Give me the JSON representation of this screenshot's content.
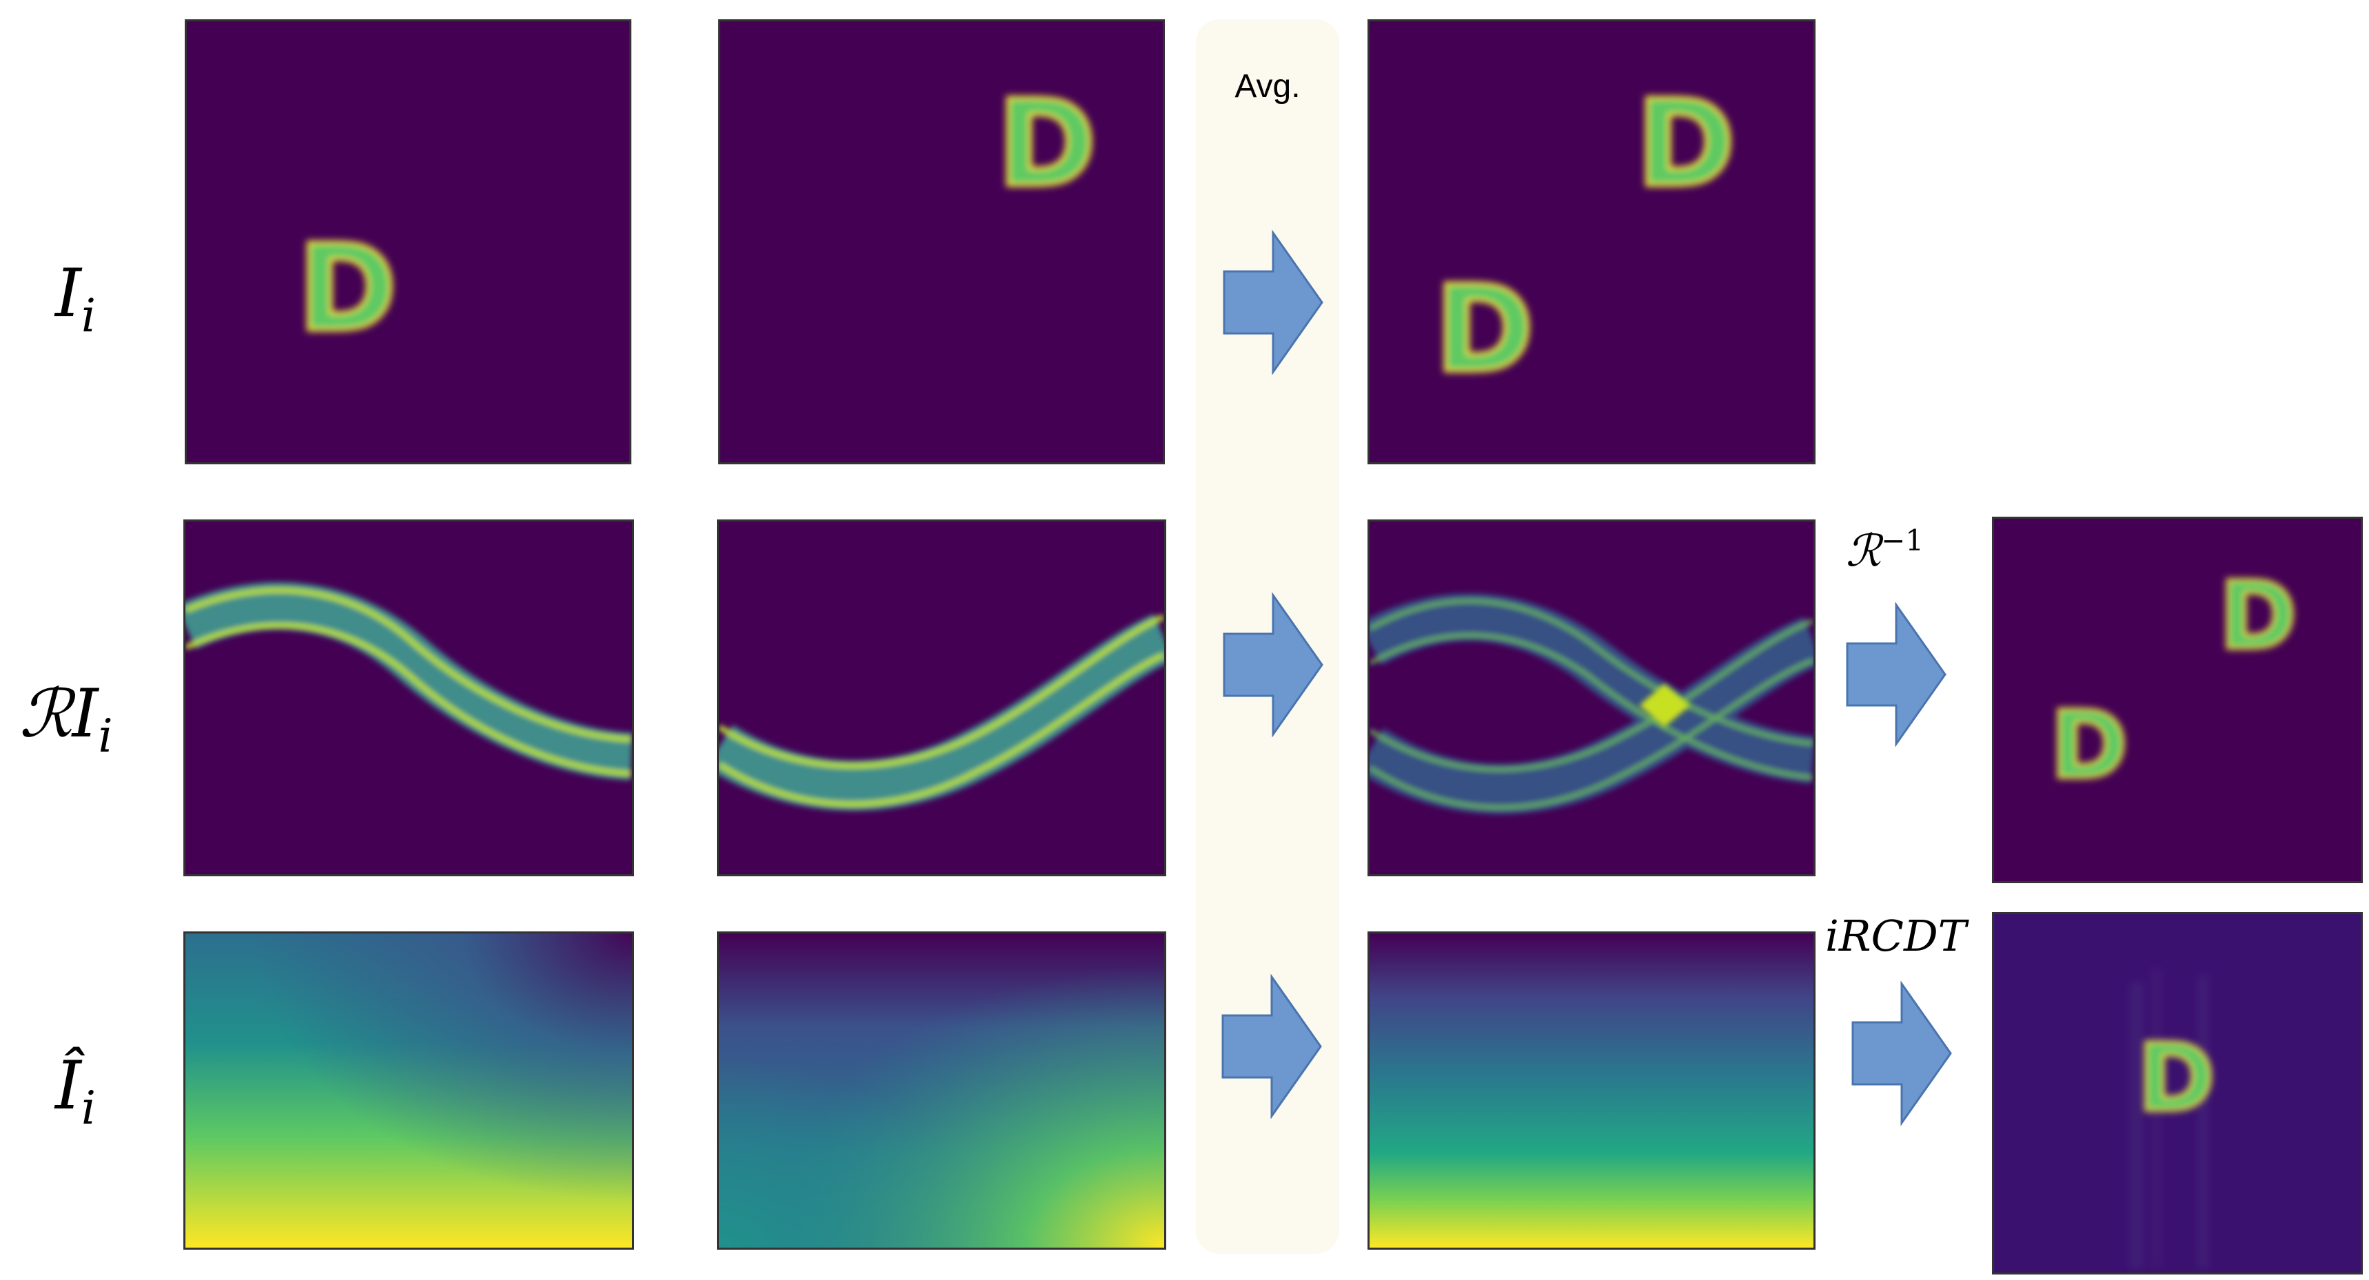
{
  "rows": [
    {
      "label_main": "I",
      "label_sub": "i",
      "hat": ""
    },
    {
      "label_main": "ℛI",
      "label_sub": "i",
      "hat": ""
    },
    {
      "label_main": "Î",
      "label_sub": "i",
      "hat": "^"
    }
  ],
  "avg_label": "Avg.",
  "operators": {
    "radon_inverse": {
      "symbol": "ℛ",
      "exponent": "−1"
    },
    "ircdt": "iRCDT"
  },
  "glyph": "D",
  "colors": {
    "background_dark": "#440154",
    "band_mid": "#3b8f8c",
    "highlight": "#fde725",
    "arrow_fill": "#6c97cf",
    "arrow_stroke": "#4a74ad",
    "avg_band": "#fcf9ee"
  }
}
